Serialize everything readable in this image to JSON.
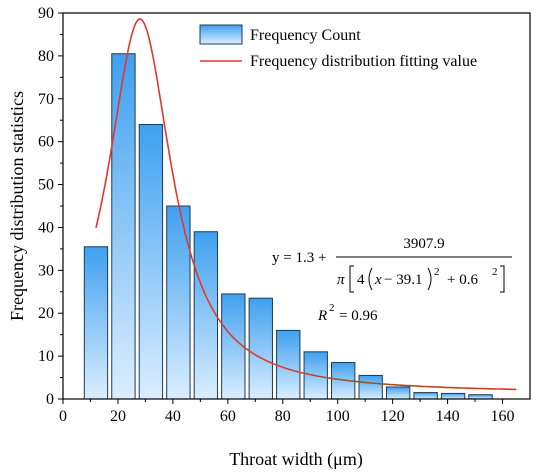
{
  "chart_data": {
    "type": "bar",
    "x_label": "Throat width (μm)",
    "y_label": "Frequency distribution statistics",
    "xlim": [
      0,
      170
    ],
    "ylim": [
      0,
      90
    ],
    "x_ticks": [
      "0",
      "20",
      "40",
      "60",
      "80",
      "100",
      "120",
      "140",
      "160"
    ],
    "y_ticks": [
      "0",
      "10",
      "20",
      "30",
      "40",
      "50",
      "60",
      "70",
      "80",
      "90"
    ],
    "bar_width": 8.5,
    "bars": {
      "name": "Frequency Count",
      "x": [
        12,
        22,
        32,
        42,
        52,
        62,
        72,
        82,
        92,
        102,
        112,
        122,
        132,
        142,
        152
      ],
      "values": [
        35.5,
        80.5,
        64,
        45,
        39,
        24.5,
        23.5,
        16,
        11,
        8.5,
        5.5,
        2.8,
        1.5,
        1.3,
        1.0
      ]
    },
    "fit_line": {
      "name": "Frequency distribution fitting value",
      "color": "#e8332c",
      "equation": {
        "y0": 1.3,
        "A": 3907.9,
        "xc": 39.1,
        "w": 0.6
      },
      "x_range": [
        12,
        165
      ]
    },
    "legend": {
      "placement": "top-right",
      "entries": [
        "Frequency Count",
        "Frequency distribution fitting value"
      ]
    },
    "annotation": {
      "lhs": "y = 1.3 +",
      "numerator": "3907.9",
      "pi": "π",
      "four": "4",
      "x_term": "x",
      "minus_term": "− 39.1",
      "sq": "2",
      "plus_term": "+ 0.6",
      "r2_lhs": "R",
      "r2_rhs": "= 0.96"
    },
    "colors": {
      "bar_top": "#3fa0ef",
      "bar_bottom": "#dbeeff",
      "bar_edge": "#1d3c5a",
      "fit": "#e8332c"
    }
  }
}
